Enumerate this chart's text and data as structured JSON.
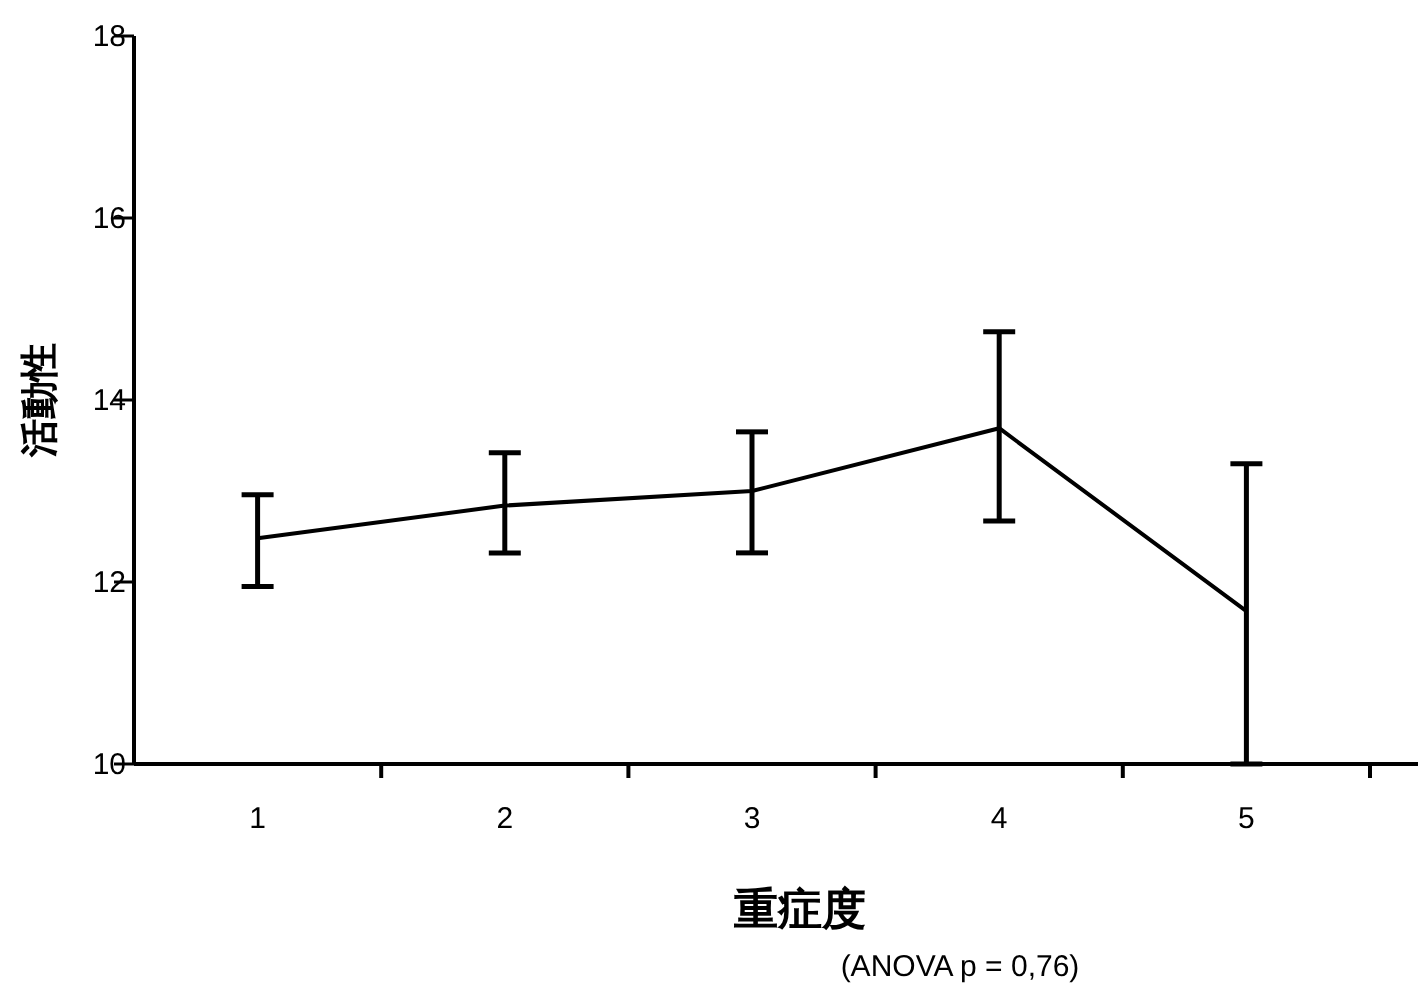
{
  "chart_data": {
    "type": "line",
    "xlabel": "重症度",
    "ylabel": "活動性",
    "categories": [
      "1",
      "2",
      "3",
      "4",
      "5"
    ],
    "values": [
      12.48,
      12.84,
      13.0,
      13.69,
      11.68
    ],
    "errors": [
      [
        11.95,
        12.96
      ],
      [
        12.32,
        13.42
      ],
      [
        12.32,
        13.65
      ],
      [
        12.67,
        14.75
      ],
      [
        10.0,
        13.3
      ]
    ],
    "color": "#000000",
    "marker": "none",
    "line_style": "solid",
    "grid": false,
    "ylim": [
      10,
      18
    ],
    "yticks": [
      10,
      12,
      14,
      16,
      18
    ],
    "annotations": [
      "(ANOVA p = 0,76)"
    ]
  }
}
